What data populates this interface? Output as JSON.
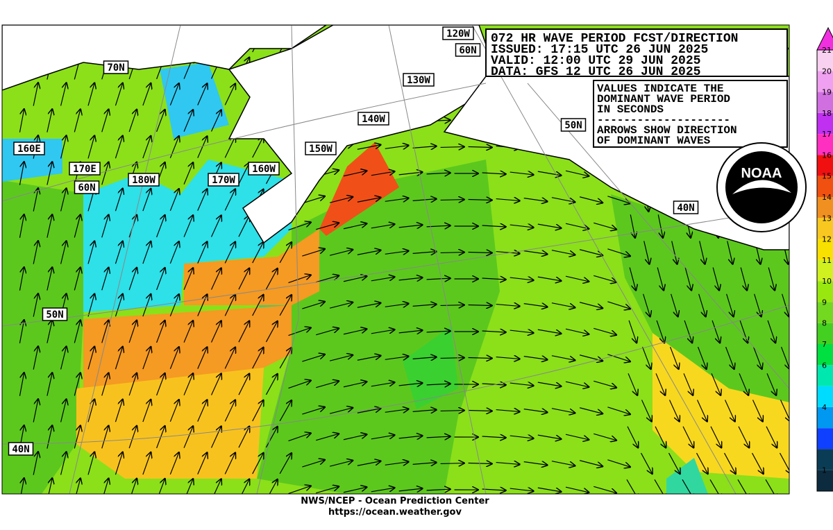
{
  "title_box": {
    "lines": [
      "072 HR WAVE PERIOD FCST/DIRECTION",
      "ISSUED: 17:15 UTC 26 JUN 2025",
      "VALID:  12:00 UTC 29 JUN 2025",
      "DATA:  GFS 12 UTC 26 JUN 2025"
    ]
  },
  "legend_box": {
    "lines": [
      "VALUES INDICATE THE",
      "DOMINANT WAVE PERIOD",
      "IN SECONDS",
      "--------------------",
      "ARROWS SHOW DIRECTION",
      "OF DOMINANT WAVES"
    ]
  },
  "labels": [
    "120W",
    "60N",
    "70N",
    "130W",
    "140W",
    "50N",
    "150W",
    "160E",
    "170E",
    "160W",
    "60N",
    "180W",
    "170W",
    "40N",
    "50N",
    "40N"
  ],
  "logo": "NOAA",
  "colorbar": {
    "labels": [
      21,
      20,
      19,
      18,
      17,
      16,
      15,
      14,
      13,
      12,
      11,
      10,
      9,
      8,
      7,
      6,
      4,
      1
    ],
    "colors": [
      "#0d2b3e",
      "#0a3d55",
      "#1040ff",
      "#0098f0",
      "#00dcff",
      "#00e8b0",
      "#00e040",
      "#44d020",
      "#72d820",
      "#98e810",
      "#d0f020",
      "#f8e000",
      "#f8c820",
      "#f09020",
      "#f05010",
      "#f01010",
      "#ff30c0",
      "#c030f0",
      "#d070e0",
      "#f0a0f0",
      "#f8d0f0"
    ],
    "over_color": "#f030e0"
  },
  "footer": {
    "line1": "NWS/NCEP - Ocean Prediction Center",
    "line2": "https://ocean.weather.gov"
  }
}
